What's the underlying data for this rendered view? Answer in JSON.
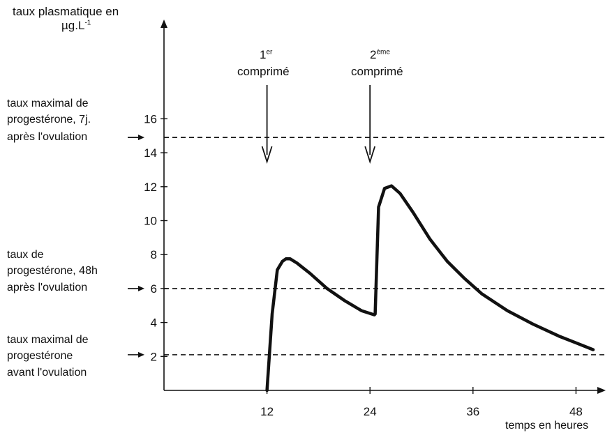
{
  "chart_data": {
    "type": "line",
    "title": "",
    "ylabel_line1": "taux plasmatique en",
    "ylabel_line2_base": "µg.L",
    "ylabel_line2_sup": "-1",
    "xlabel": "temps en heures",
    "xlim": [
      0,
      50
    ],
    "ylim": [
      0,
      20
    ],
    "x_ticks": [
      12,
      24,
      36,
      48
    ],
    "y_ticks": [
      2,
      4,
      6,
      8,
      10,
      12,
      14,
      16
    ],
    "grid": false,
    "series": [
      {
        "x": [
          12,
          12.6,
          13.2,
          13.8,
          14.2,
          14.7,
          15.5,
          17,
          19,
          21,
          23,
          24.5,
          24.6,
          25,
          25.7,
          26.5,
          27.5,
          29,
          31,
          33,
          35,
          37,
          40,
          43,
          46,
          48,
          50
        ],
        "values": [
          0,
          4.5,
          7.1,
          7.6,
          7.75,
          7.75,
          7.5,
          6.9,
          6.0,
          5.3,
          4.7,
          4.45,
          4.5,
          10.8,
          11.9,
          12.05,
          11.6,
          10.5,
          8.9,
          7.6,
          6.6,
          5.7,
          4.7,
          3.9,
          3.2,
          2.8,
          2.4
        ]
      }
    ],
    "reference_lines": [
      {
        "y": 14.9,
        "label_lines": [
          "taux maximal de",
          "progestérone, 7j.",
          "après l'ovulation"
        ]
      },
      {
        "y": 6.0,
        "label_lines": [
          "taux de",
          "progestérone, 48h",
          "après l'ovulation"
        ]
      },
      {
        "y": 2.1,
        "label_lines": [
          "taux maximal de",
          "progestérone",
          "avant l'ovulation"
        ]
      }
    ],
    "annotations": [
      {
        "x": 12,
        "sup": "er",
        "base": "1",
        "line2": "comprimé"
      },
      {
        "x": 24,
        "sup": "ème",
        "base": "2",
        "line2": "comprimé"
      }
    ]
  }
}
